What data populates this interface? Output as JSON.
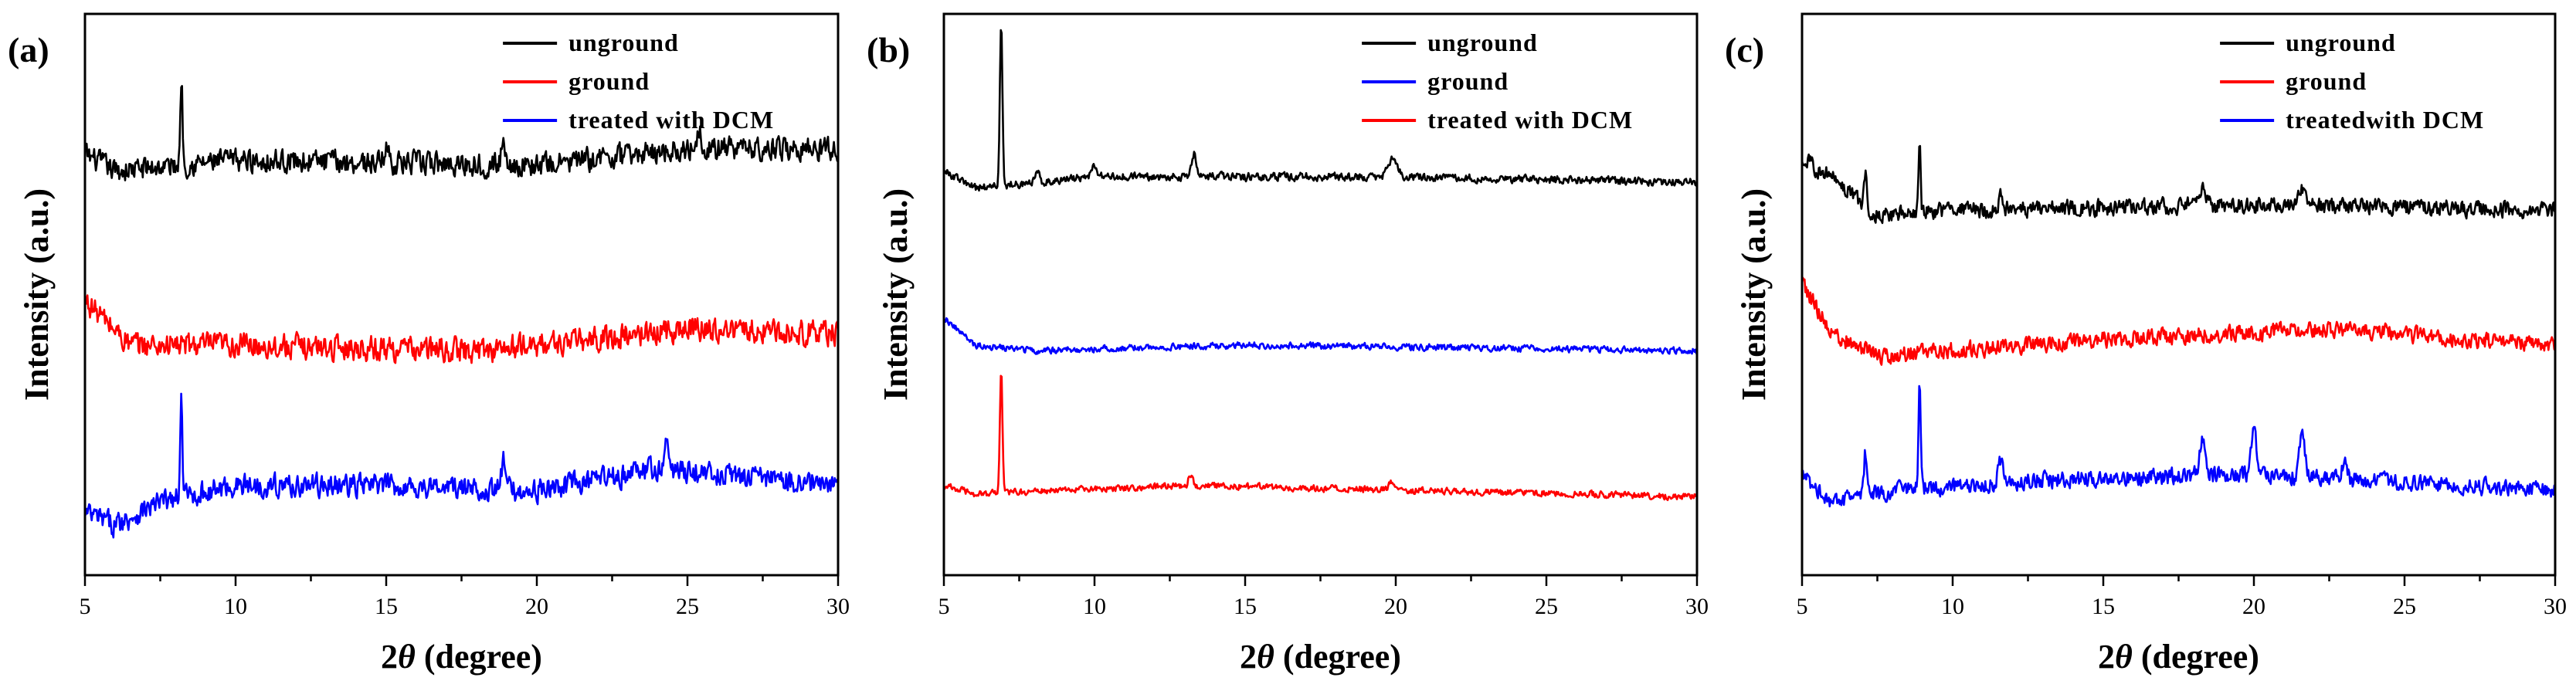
{
  "colors": {
    "black": "#000000",
    "red": "#ff0000",
    "blue": "#0000ff"
  },
  "chart_data": [
    {
      "type": "line",
      "panel_label": "(a)",
      "xlabel_prefix": "2",
      "xlabel_symbol": "θ",
      "xlabel_suffix": " (degree)",
      "ylabel": "Intensity (a.u.)",
      "xlim": [
        5,
        30
      ],
      "ylim": [
        0,
        10
      ],
      "xticks": [
        "5",
        "10",
        "15",
        "20",
        "25",
        "30"
      ],
      "legend_position": "top-right",
      "series": [
        {
          "name": "unground",
          "color": "#000000",
          "baseline": 7.3,
          "noise": 0.28,
          "trend": [
            [
              5,
              0.2
            ],
            [
              6,
              -0.1
            ],
            [
              10,
              0.1
            ],
            [
              20,
              0.0
            ],
            [
              25,
              0.3
            ],
            [
              30,
              0.3
            ]
          ],
          "peaks": [
            [
              8.2,
              1.6,
              0.05
            ],
            [
              15.0,
              0.3,
              0.1
            ],
            [
              18.9,
              0.4,
              0.1
            ],
            [
              25.4,
              0.4,
              0.1
            ]
          ]
        },
        {
          "name": "ground",
          "color": "#ff0000",
          "baseline": 4.1,
          "noise": 0.3,
          "trend": [
            [
              5,
              0.8
            ],
            [
              6.5,
              0.0
            ],
            [
              10,
              0.0
            ],
            [
              18,
              -0.1
            ],
            [
              22,
              0.1
            ],
            [
              25,
              0.3
            ],
            [
              30,
              0.2
            ]
          ],
          "peaks": []
        },
        {
          "name": "treated with DCM",
          "color": "#0000ff",
          "baseline": 1.3,
          "noise": 0.28,
          "trend": [
            [
              5,
              -0.2
            ],
            [
              6,
              -0.4
            ],
            [
              7.5,
              0.0
            ],
            [
              10,
              0.3
            ],
            [
              15,
              0.3
            ],
            [
              20,
              0.2
            ],
            [
              24,
              0.6
            ],
            [
              30,
              0.3
            ]
          ],
          "peaks": [
            [
              8.2,
              1.7,
              0.05
            ],
            [
              18.9,
              0.5,
              0.1
            ],
            [
              24.3,
              0.4,
              0.1
            ]
          ]
        }
      ]
    },
    {
      "type": "line",
      "panel_label": "(b)",
      "xlabel_prefix": "2",
      "xlabel_symbol": "θ",
      "xlabel_suffix": " (degree)",
      "ylabel": "Intensity (a.u.)",
      "xlim": [
        5,
        30
      ],
      "ylim": [
        0,
        10
      ],
      "xticks": [
        "5",
        "10",
        "15",
        "20",
        "25",
        "30"
      ],
      "legend_position": "top-right",
      "series": [
        {
          "name": "unground",
          "color": "#000000",
          "baseline": 7.0,
          "noise": 0.1,
          "trend": [
            [
              5,
              0.2
            ],
            [
              6,
              -0.1
            ],
            [
              10,
              0.1
            ],
            [
              20,
              0.1
            ],
            [
              30,
              0.0
            ]
          ],
          "peaks": [
            [
              6.9,
              2.9,
              0.06
            ],
            [
              8.1,
              0.2,
              0.08
            ],
            [
              10.0,
              0.2,
              0.12
            ],
            [
              13.3,
              0.4,
              0.1
            ],
            [
              19.9,
              0.35,
              0.2
            ]
          ]
        },
        {
          "name": "ground",
          "color": "#0000ff",
          "baseline": 4.0,
          "noise": 0.08,
          "trend": [
            [
              5,
              0.6
            ],
            [
              6,
              0.1
            ],
            [
              8,
              0.0
            ],
            [
              15,
              0.1
            ],
            [
              30,
              0.0
            ]
          ],
          "peaks": []
        },
        {
          "name": "treated with DCM",
          "color": "#ff0000",
          "baseline": 1.4,
          "noise": 0.08,
          "trend": [
            [
              5,
              0.2
            ],
            [
              6,
              0.05
            ],
            [
              13,
              0.2
            ],
            [
              30,
              0.0
            ]
          ],
          "peaks": [
            [
              6.9,
              2.2,
              0.06
            ],
            [
              13.2,
              0.2,
              0.1
            ],
            [
              19.9,
              0.15,
              0.15
            ]
          ]
        }
      ]
    },
    {
      "type": "line",
      "panel_label": "(c)",
      "xlabel_prefix": "2",
      "xlabel_symbol": "θ",
      "xlabel_suffix": " (degree)",
      "ylabel": "Intensity (a.u.)",
      "xlim": [
        5,
        30
      ],
      "ylim": [
        0,
        10
      ],
      "xticks": [
        "5",
        "10",
        "15",
        "20",
        "25",
        "30"
      ],
      "legend_position": "top-right",
      "series": [
        {
          "name": "unground",
          "color": "#000000",
          "baseline": 6.5,
          "noise": 0.2,
          "trend": [
            [
              5,
              0.9
            ],
            [
              6,
              0.6
            ],
            [
              7.5,
              -0.1
            ],
            [
              10,
              0.0
            ],
            [
              20,
              0.1
            ],
            [
              30,
              0.0
            ]
          ],
          "peaks": [
            [
              7.1,
              0.6,
              0.06
            ],
            [
              8.9,
              1.3,
              0.05
            ],
            [
              11.6,
              0.3,
              0.1
            ],
            [
              18.3,
              0.3,
              0.12
            ],
            [
              21.6,
              0.3,
              0.12
            ]
          ]
        },
        {
          "name": "ground",
          "color": "#ff0000",
          "baseline": 4.0,
          "noise": 0.2,
          "trend": [
            [
              5,
              1.2
            ],
            [
              6,
              0.3
            ],
            [
              7.5,
              -0.1
            ],
            [
              15,
              0.2
            ],
            [
              23,
              0.4
            ],
            [
              27,
              0.2
            ],
            [
              30,
              0.1
            ]
          ],
          "peaks": []
        },
        {
          "name": "treatedwith DCM",
          "color": "#0000ff",
          "baseline": 1.5,
          "noise": 0.2,
          "trend": [
            [
              5,
              0.3
            ],
            [
              6,
              -0.2
            ],
            [
              8,
              0.0
            ],
            [
              13,
              0.2
            ],
            [
              20,
              0.3
            ],
            [
              30,
              0.0
            ]
          ],
          "peaks": [
            [
              7.1,
              0.8,
              0.06
            ],
            [
              8.9,
              1.8,
              0.05
            ],
            [
              11.6,
              0.4,
              0.12
            ],
            [
              18.3,
              0.6,
              0.15
            ],
            [
              20.0,
              0.8,
              0.12
            ],
            [
              21.6,
              0.9,
              0.12
            ],
            [
              23.0,
              0.3,
              0.12
            ]
          ]
        }
      ]
    }
  ]
}
